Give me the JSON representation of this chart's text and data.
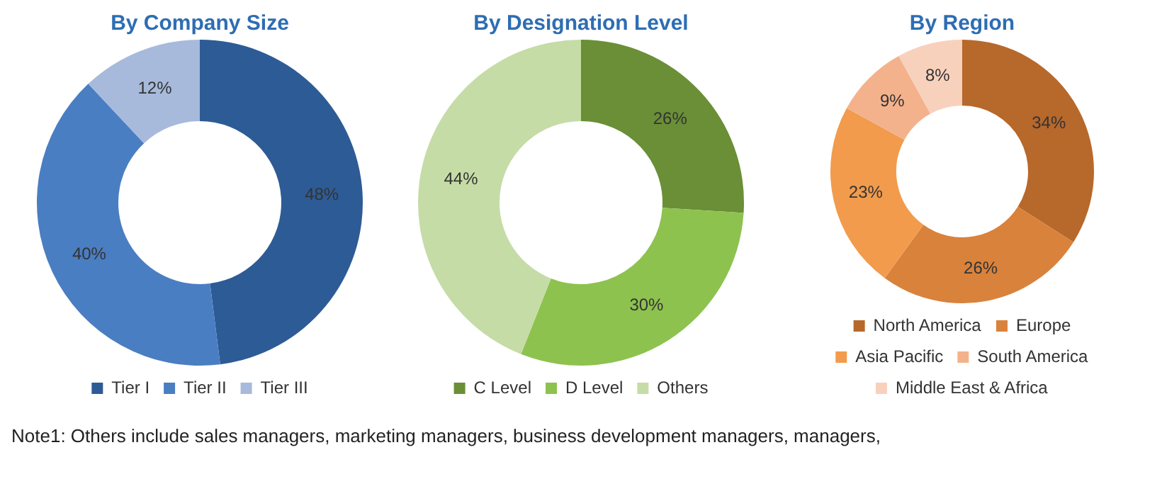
{
  "chart_data": [
    {
      "type": "donut",
      "title": "By Company Size",
      "categories": [
        "Tier I",
        "Tier II",
        "Tier III"
      ],
      "values": [
        48,
        40,
        12
      ],
      "value_labels": [
        "48%",
        "40%",
        "12%"
      ],
      "colors": [
        "#2d5b95",
        "#4a7ec2",
        "#a7badb"
      ],
      "legend": "bottom"
    },
    {
      "type": "donut",
      "title": "By Designation Level",
      "categories": [
        "C Level",
        "D Level",
        "Others"
      ],
      "values": [
        26,
        30,
        44
      ],
      "value_labels": [
        "26%",
        "30%",
        "44%"
      ],
      "colors": [
        "#6a8f37",
        "#8dc24f",
        "#c6dca7"
      ],
      "legend": "bottom"
    },
    {
      "type": "donut",
      "title": "By Region",
      "categories": [
        "North America",
        "Europe",
        "Asia Pacific",
        "South America",
        "Middle East & Africa"
      ],
      "values": [
        34,
        26,
        23,
        9,
        8
      ],
      "value_labels": [
        "34%",
        "26%",
        "23%",
        "9%",
        "8%"
      ],
      "colors": [
        "#b7682b",
        "#d9823b",
        "#f29b4c",
        "#f4b28c",
        "#f8d1bd"
      ],
      "legend": "bottom",
      "annotations": [
        "Note1: Others include sales managers, marketing managers, business development managers, managers,"
      ]
    }
  ]
}
